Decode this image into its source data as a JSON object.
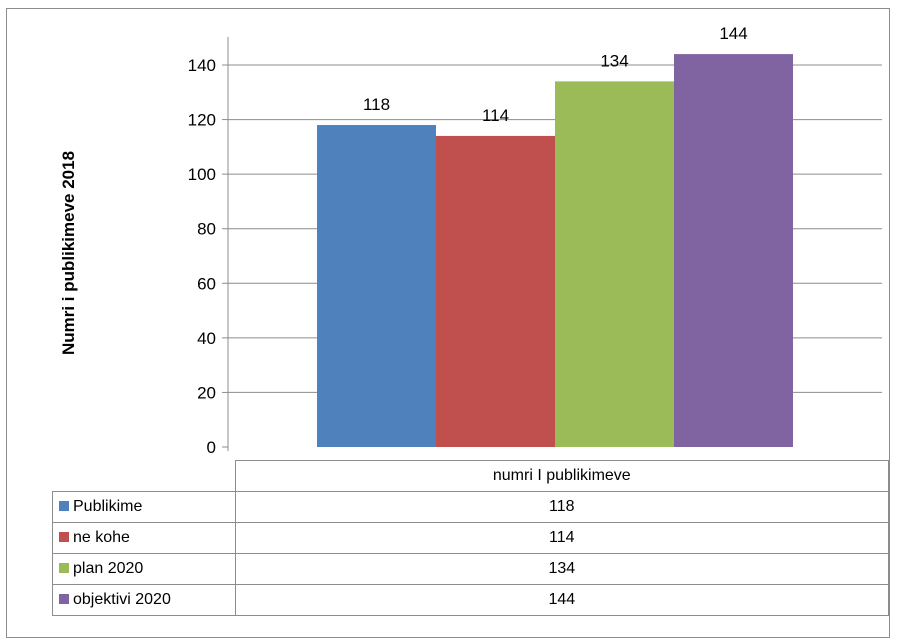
{
  "chart_data": {
    "type": "bar",
    "categories": [
      "numri I publikimeve"
    ],
    "series": [
      {
        "name": "Publikime",
        "values": [
          118
        ],
        "color": "#4f81bd"
      },
      {
        "name": "ne kohe",
        "values": [
          114
        ],
        "color": "#c0504d"
      },
      {
        "name": "plan 2020",
        "values": [
          134
        ],
        "color": "#9bbb59"
      },
      {
        "name": "objektivi 2020",
        "values": [
          144
        ],
        "color": "#8064a2"
      }
    ],
    "title": "",
    "xlabel": "numri I publikimeve",
    "ylabel": "Numri i publikimeve 2018",
    "ylim": [
      0,
      140
    ],
    "yticks": [
      "0",
      "20",
      "40",
      "60",
      "80",
      "100",
      "120",
      "140"
    ],
    "data_labels": [
      "118",
      "114",
      "134",
      "144"
    ],
    "grid": true,
    "legend": "data-table"
  }
}
